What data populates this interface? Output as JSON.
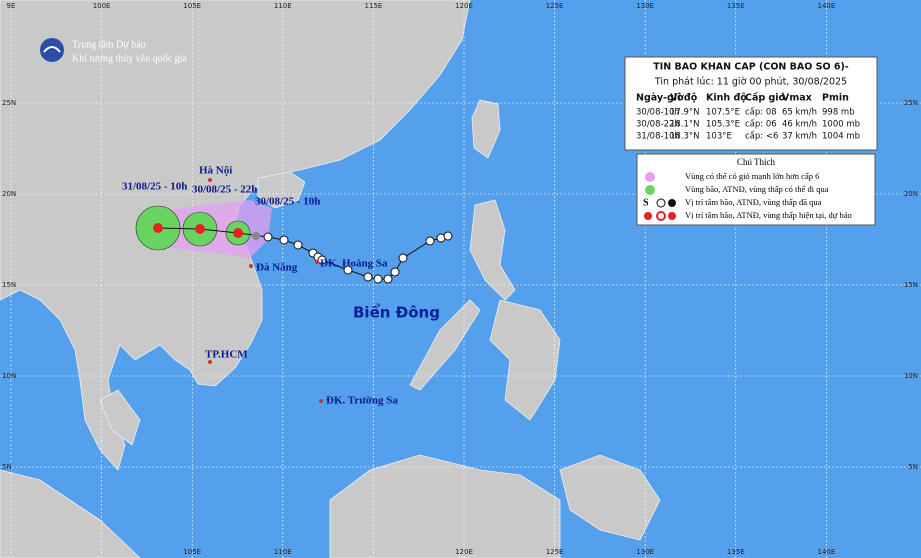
{
  "header": {
    "org_line1": "Trung tâm Dự báo",
    "org_line2": "Khí tượng thủy văn quốc gia"
  },
  "grid": {
    "top_lon": [
      "9E",
      "100E",
      "105E",
      "110E",
      "115E",
      "120E",
      "125E",
      "130E",
      "135E",
      "140E"
    ],
    "bottom_lon": [
      "105E",
      "110E",
      "120E",
      "125E",
      "130E",
      "135E",
      "140E"
    ],
    "lat": [
      "25N",
      "20N",
      "15N",
      "10N",
      "5N"
    ]
  },
  "bulletin": {
    "title": "TIN BAO KHAN CAP (CON BAO SO 6)-",
    "issued": "Tin phát lúc: 11 giờ 00 phút, 30/08/2025",
    "columns": [
      "Ngày-giờ",
      "Vĩ độ",
      "Kinh độ",
      "Cấp gió",
      "Vmax",
      "Pmin"
    ],
    "rows": [
      [
        "30/08-10h",
        "17.9°N",
        "107.5°E",
        "cấp: 08",
        "65 km/h",
        "998 mb"
      ],
      [
        "30/08-22h",
        "18.1°N",
        "105.3°E",
        "cấp: 06",
        "46 km/h",
        "1000 mb"
      ],
      [
        "31/08-10h",
        "18.3°N",
        "103°E",
        "cấp: <6",
        "37 km/h",
        "1004 mb"
      ]
    ]
  },
  "legend": {
    "title": "Chú Thích",
    "items": [
      "Vùng có thể có gió mạnh lớn hơn cấp 6",
      "Vùng bão, ATNĐ, vùng thấp có thể đi qua",
      "Vị trí tâm bão, ATNĐ, vùng thấp đã qua",
      "Vị trí tâm bão, ATNĐ, vùng thấp hiện tại, dự báo"
    ]
  },
  "places": {
    "hanoi": "Hà Nội",
    "danang": "Đà Nẵng",
    "hcm": "TP.HCM",
    "hoangsa": "ĐK. Hoàng Sa",
    "truongsa": "ĐK. Trường Sa",
    "sea": "Biển Đông"
  },
  "forecast_labels": [
    "31/08/25 - 10h",
    "30/08/25 - 22h",
    "30/08/25 - 10h"
  ]
}
